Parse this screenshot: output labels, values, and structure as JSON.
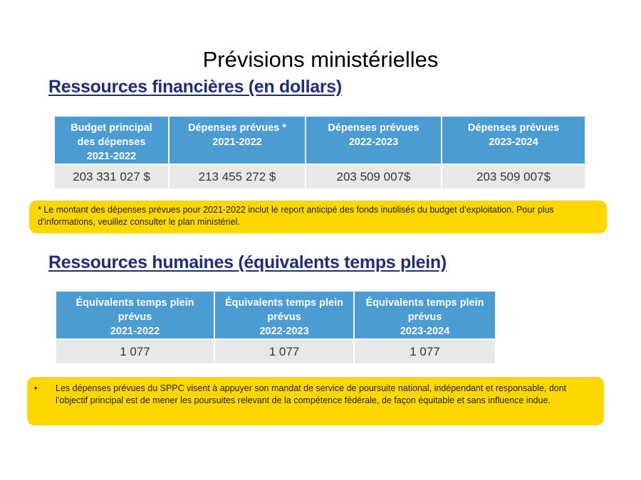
{
  "page": {
    "title": "Prévisions ministérielles"
  },
  "financial": {
    "heading": "Ressources financières (en dollars)",
    "headers": [
      [
        "Budget principal",
        "des dépenses",
        "2021-2022"
      ],
      [
        "Dépenses prévues *",
        "2021-2022"
      ],
      [
        "Dépenses prévues",
        "2022-2023"
      ],
      [
        "Dépenses prévues",
        "2023-2024"
      ]
    ],
    "values": [
      "203 331 027 $",
      "213 455 272 $",
      "203 509 007$",
      "203 509 007$"
    ]
  },
  "financial_note": {
    "text": "* Le montant des dépenses prévues pour 2021-2022   inclut le report anticipé des fonds inutilisés du budget d’exploitation. Pour plus d'informations, veuillez consulter le plan ministériel."
  },
  "human": {
    "heading": "Ressources humaines (équivalents temps plein)",
    "headers": [
      [
        "Équivalents temps plein",
        "prévus",
        "2021-2022"
      ],
      [
        "Équivalents temps plein",
        "prévus",
        "2022-2023"
      ],
      [
        "Équivalents temps plein",
        "prévus",
        "2023-2024"
      ]
    ],
    "values": [
      "1 077",
      "1 077",
      "1 077"
    ]
  },
  "human_note": {
    "bullet": "•",
    "text": "Les dépenses prévues du SPPC visent à appuyer son mandat de service de poursuite national, indépendant et responsable, dont l’objectif principal est de mener les poursuites relevant de la compétence fédérale, de façon équitable et sans influence indue."
  },
  "colors": {
    "header_blue": "#4a9cd3",
    "heading_navy": "#1f2d7a",
    "note_yellow": "#ffd700",
    "cell_gray": "#e7e8e9"
  }
}
